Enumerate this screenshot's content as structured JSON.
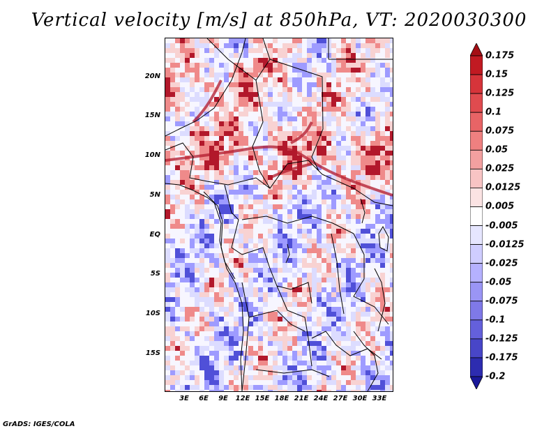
{
  "title": "Vertical velocity [m/s] at 850hPa, VT: 2020030300",
  "footer": "GrADS: IGES/COLA",
  "map": {
    "lat_labels": [
      "20N",
      "15N",
      "10N",
      "5N",
      "EQ",
      "5S",
      "10S",
      "15S"
    ],
    "lon_labels": [
      "3E",
      "6E",
      "9E",
      "12E",
      "15E",
      "18E",
      "21E",
      "24E",
      "27E",
      "30E",
      "33E"
    ],
    "colors": {
      "strong_up": "#b2182b",
      "up": "#ef8a8a",
      "weak_up": "#f8d2d2",
      "weak_down": "#dcdcff",
      "down": "#9e9bff",
      "strong_down": "#5050d8",
      "border": "#000000"
    }
  },
  "colorbar": {
    "labels": [
      "0.175",
      "0.15",
      "0.125",
      "0.1",
      "0.075",
      "0.05",
      "0.025",
      "0.0125",
      "0.005",
      "-0.005",
      "-0.0125",
      "-0.025",
      "-0.05",
      "-0.075",
      "-0.1",
      "-0.125",
      "-0.175",
      "-0.2"
    ],
    "colors": [
      "#a50f15",
      "#c11a22",
      "#d6343a",
      "#e04b4f",
      "#e86466",
      "#ef8080",
      "#f3a0a0",
      "#f8c4c4",
      "#fbe3e3",
      "#ffffff",
      "#e6e6ff",
      "#cfcdff",
      "#b5b1ff",
      "#9a95f5",
      "#7f79e8",
      "#6460db",
      "#4846c8",
      "#2d2cb0",
      "#1a189a"
    ]
  }
}
